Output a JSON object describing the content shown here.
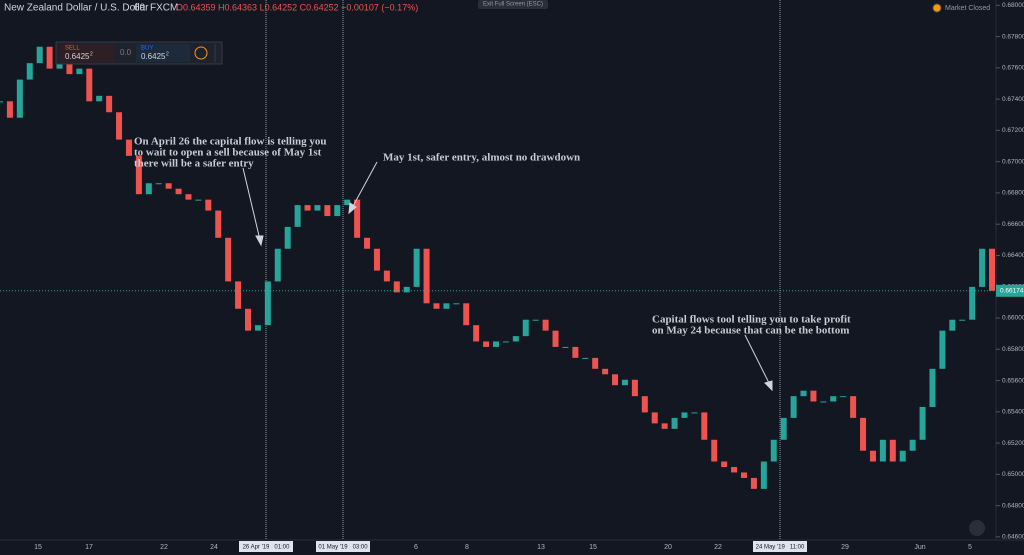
{
  "header": {
    "symbol": "New Zealand Dollar / U.S. Dollar",
    "interval": "60",
    "source": "FXCM",
    "ohlc": "O0.64359 H0.64363 L0.64252 C0.64252 −0.00107 (−0.17%)",
    "fullscreen": "Exit Full Screen (ESC)",
    "market": "Market Closed"
  },
  "trade": {
    "sell_label": "SELL",
    "sell_price": "0.6425",
    "sell_sup": "2",
    "spread": "0.0",
    "buy_label": "BUY",
    "buy_price": "0.6425",
    "buy_sup": "2"
  },
  "chart": {
    "type": "candlestick",
    "closes": [
      0.67386,
      0.67281,
      0.67525,
      0.6763,
      0.67735,
      0.67595,
      0.67665,
      0.6756,
      0.67595,
      0.67386,
      0.67421,
      0.67316,
      0.67141,
      0.67037,
      0.66792,
      0.66862,
      0.66862,
      0.66827,
      0.66792,
      0.66757,
      0.66757,
      0.66687,
      0.66513,
      0.66234,
      0.66059,
      0.65919,
      0.65954,
      0.66234,
      0.66443,
      0.66583,
      0.66722,
      0.66687,
      0.66722,
      0.66652,
      0.66722,
      0.66757,
      0.66513,
      0.66443,
      0.66303,
      0.66234,
      0.66164,
      0.66199,
      0.66443,
      0.66094,
      0.66059,
      0.66094,
      0.66094,
      0.65954,
      0.6585,
      0.65815,
      0.6585,
      0.6585,
      0.65884,
      0.65989,
      0.65989,
      0.65919,
      0.65815,
      0.65815,
      0.65745,
      0.65745,
      0.65675,
      0.6564,
      0.6557,
      0.65605,
      0.655,
      0.65396,
      0.65326,
      0.65291,
      0.65361,
      0.65396,
      0.65396,
      0.65221,
      0.65082,
      0.65047,
      0.65012,
      0.64977,
      0.64907,
      0.65082,
      0.65221,
      0.65361,
      0.655,
      0.65535,
      0.65466,
      0.65466,
      0.655,
      0.655,
      0.65361,
      0.65151,
      0.65082,
      0.65221,
      0.65082,
      0.65151,
      0.65221,
      0.65431,
      0.65675,
      0.65919,
      0.65989,
      0.65989,
      0.66199,
      0.66443,
      0.66174
    ],
    "last_price_label": "0.66174",
    "ylim": [
      0.6458,
      0.68034
    ],
    "yticks": [
      {
        "value": 0.68,
        "label": "0.68000"
      },
      {
        "value": 0.678,
        "label": "0.67800"
      },
      {
        "value": 0.676,
        "label": "0.67600"
      },
      {
        "value": 0.674,
        "label": "0.67400"
      },
      {
        "value": 0.672,
        "label": "0.67200"
      },
      {
        "value": 0.67,
        "label": "0.67000"
      },
      {
        "value": 0.668,
        "label": "0.66800"
      },
      {
        "value": 0.666,
        "label": "0.66600"
      },
      {
        "value": 0.664,
        "label": "0.66400"
      },
      {
        "value": 0.662,
        "label": "0.66200"
      },
      {
        "value": 0.66,
        "label": "0.66000"
      },
      {
        "value": 0.658,
        "label": "0.65800"
      },
      {
        "value": 0.656,
        "label": "0.65600"
      },
      {
        "value": 0.654,
        "label": "0.65400"
      },
      {
        "value": 0.652,
        "label": "0.65200"
      },
      {
        "value": 0.65,
        "label": "0.65000"
      },
      {
        "value": 0.648,
        "label": "0.64800"
      },
      {
        "value": 0.646,
        "label": "0.64600"
      }
    ],
    "dates": [
      "15",
      "17",
      "22",
      "24",
      "26 Apr '19   01:00",
      "01 May '19   03:00",
      "6",
      "8",
      "13",
      "15",
      "20",
      "22",
      "24 May '19   11:00",
      "29",
      "Jun",
      "5"
    ],
    "up_color": "#26a69a",
    "down_color": "#ef5350"
  },
  "annotations": [
    [
      "On April 26 the capital flow is telling you",
      "to wait to open a sell because of May 1st",
      "there will be a safer entry"
    ],
    [
      "May 1st, safer entry, almost no drawdown"
    ],
    [
      "Capital flows tool telling you to take profit",
      "on May 24 because that can be the bottom"
    ]
  ]
}
